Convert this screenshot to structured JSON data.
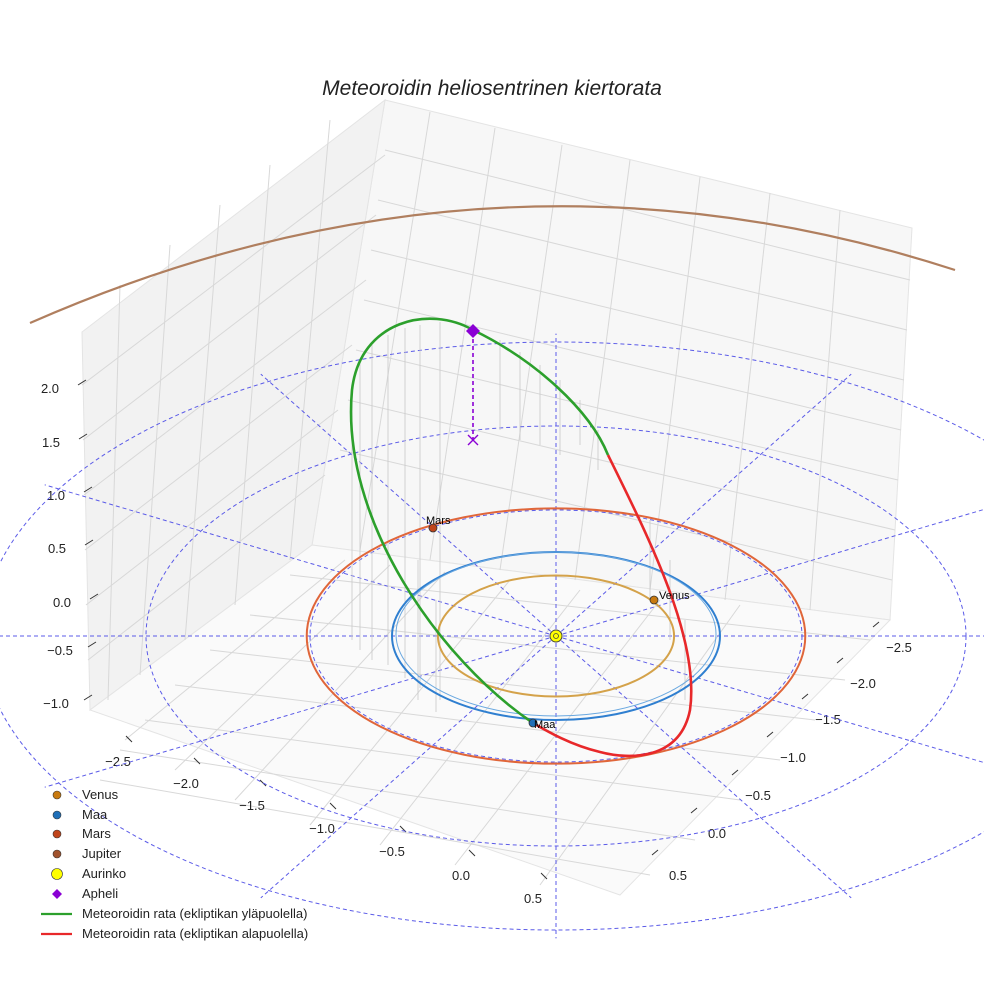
{
  "chart_data": {
    "type": "3d-line",
    "title": "Meteoroidin heliosentrinen kiertorata",
    "axes": {
      "x": {
        "ticks": [
          -2.5,
          -2.0,
          -1.5,
          -1.0,
          -0.5,
          0.0,
          0.5
        ],
        "tick_labels": [
          "−2.5",
          "−2.0",
          "−1.5",
          "−1.0",
          "−0.5",
          "0.0",
          "0.5"
        ]
      },
      "y": {
        "ticks": [
          -2.5,
          -2.0,
          -1.5,
          -1.0,
          -0.5,
          0.0,
          0.5
        ],
        "tick_labels": [
          "−2.5",
          "−2.0",
          "−1.5",
          "−1.0",
          "−0.5",
          "0.0",
          "0.5"
        ]
      },
      "z": {
        "ticks": [
          -1.0,
          -0.5,
          0.0,
          0.5,
          1.0,
          1.5,
          2.0
        ],
        "tick_labels": [
          "−1.0",
          "−0.5",
          "0.0",
          "0.5",
          "1.0",
          "1.5",
          "2.0"
        ]
      }
    },
    "grid": true,
    "planets": [
      {
        "name": "Venus",
        "orbit_radius": 0.72,
        "color": "#d4a24a",
        "marker_color": "#c87a10",
        "label": "Venus"
      },
      {
        "name": "Maa",
        "orbit_radius": 1.0,
        "color": "#2f7fd0",
        "marker_color": "#1f6fb8",
        "label": "Maa"
      },
      {
        "name": "Mars",
        "orbit_radius": 1.52,
        "color": "#e0663a",
        "marker_color": "#c0451b",
        "label": "Mars"
      },
      {
        "name": "Jupiter",
        "orbit_radius": 5.2,
        "color": "#b07f5f",
        "marker_color": "#a0522d"
      }
    ],
    "sun": {
      "name": "Aurinko",
      "x": 0,
      "y": 0,
      "z": 0,
      "color": "#ffff00"
    },
    "aphelion": {
      "name": "Apheli",
      "color": "#8a00d4"
    },
    "meteoroid": {
      "above_label": "Meteoroidin rata (ekliptikan yläpuolella)",
      "below_label": "Meteoroidin rata (ekliptikan alapuolella)",
      "above_color": "#2ca02c",
      "below_color": "#e8282a"
    },
    "reference_circles": [
      1.5,
      2.5,
      3.5
    ],
    "legend": {
      "position": "bottom-left",
      "entries": [
        "Venus",
        "Maa",
        "Mars",
        "Jupiter",
        "Aurinko",
        "Apheli",
        "Meteoroidin rata (ekliptikan yläpuolella)",
        "Meteoroidin rata (ekliptikan alapuolella)"
      ]
    }
  }
}
